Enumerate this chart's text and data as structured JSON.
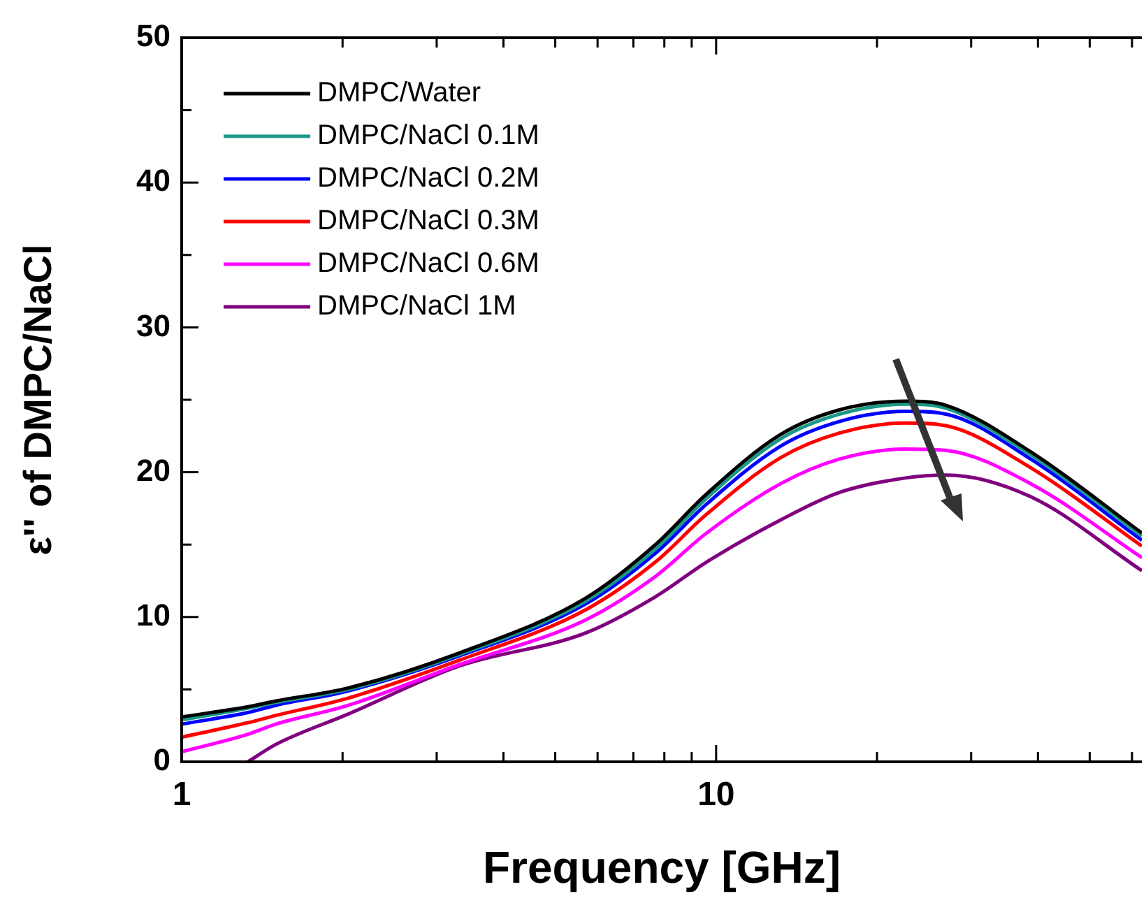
{
  "chart_data": {
    "type": "line",
    "xlabel": "Frequency [GHz]",
    "ylabel": "ε'' of DMPC/NaCl",
    "log": "x",
    "grid": false,
    "legend": "top left",
    "marker": "none",
    "line_style": "solid",
    "x": [
      1,
      1.33,
      1.5,
      2.05,
      3.3,
      5.7,
      7.7,
      9.6,
      13.2,
      17,
      22.6,
      27,
      38.8,
      62.6
    ],
    "xlim": [
      1,
      62.6
    ],
    "xticks": [
      1,
      {
        "value": 2,
        "label": null
      },
      {
        "value": 3,
        "label": null
      },
      {
        "value": 4,
        "label": null
      },
      {
        "value": 5,
        "label": null
      },
      {
        "value": 6,
        "label": null
      },
      {
        "value": 7,
        "label": null
      },
      {
        "value": 8,
        "label": null
      },
      {
        "value": 9,
        "label": null
      },
      10,
      {
        "value": 20,
        "label": null
      },
      {
        "value": 30,
        "label": null
      },
      {
        "value": 40,
        "label": null
      },
      {
        "value": 50,
        "label": null
      },
      {
        "value": 60,
        "label": null
      }
    ],
    "ylim": [
      0,
      50
    ],
    "yticks": [
      0,
      {
        "value": 5,
        "label": null
      },
      10,
      {
        "value": 15,
        "label": null
      },
      20,
      {
        "value": 25,
        "label": null
      },
      30,
      {
        "value": 35,
        "label": null
      },
      40,
      {
        "value": 45,
        "label": null
      },
      50
    ],
    "series": [
      {
        "name": "DMPC/Water",
        "color": "#000000",
        "values": [
          3.1,
          3.8,
          4.2,
          5.1,
          7.5,
          11.3,
          15.0,
          18.5,
          22.6,
          24.3,
          24.9,
          24.6,
          21.4,
          15.8
        ]
      },
      {
        "name": "DMPC/NaCl 0.1M",
        "color": "#1a9988",
        "values": [
          2.9,
          3.7,
          4.1,
          5.0,
          7.4,
          11.1,
          14.7,
          18.2,
          22.3,
          24.0,
          24.7,
          24.4,
          21.2,
          15.6
        ]
      },
      {
        "name": "DMPC/NaCl 0.2M",
        "color": "#0000ff",
        "values": [
          2.6,
          3.4,
          3.9,
          4.9,
          7.3,
          10.9,
          14.4,
          17.8,
          21.8,
          23.5,
          24.2,
          24.0,
          20.9,
          15.3
        ]
      },
      {
        "name": "DMPC/NaCl 0.3M",
        "color": "#ff0000",
        "values": [
          1.7,
          2.7,
          3.2,
          4.4,
          7.0,
          10.5,
          13.8,
          17.1,
          21.0,
          22.7,
          23.4,
          23.2,
          20.3,
          14.9
        ]
      },
      {
        "name": "DMPC/NaCl 0.6M",
        "color": "#ff00ff",
        "values": [
          0.7,
          1.9,
          2.6,
          3.9,
          6.7,
          9.8,
          12.8,
          15.8,
          19.2,
          20.9,
          21.6,
          21.5,
          19.2,
          14.1
        ]
      },
      {
        "name": "DMPC/NaCl 1M",
        "color": "#800080",
        "values": [
          null,
          0,
          1.2,
          3.3,
          6.6,
          8.9,
          11.4,
          13.8,
          16.7,
          18.6,
          19.6,
          19.8,
          18.3,
          13.2
        ]
      }
    ]
  }
}
